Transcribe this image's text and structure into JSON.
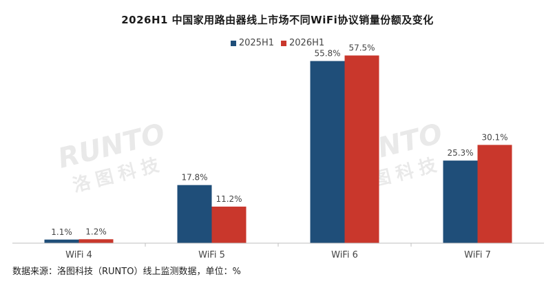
{
  "chart_data": {
    "type": "bar",
    "title": "2026H1 中国家用路由器线上市场不同WiFi协议销量份额及变化",
    "categories": [
      "WiFi 4",
      "WiFi 5",
      "WiFi 6",
      "WiFi 7"
    ],
    "series": [
      {
        "name": "2025H1",
        "values": [
          1.1,
          17.8,
          55.8,
          25.3
        ],
        "labels": [
          "1.1%",
          "17.8%",
          "55.8%",
          "25.3%"
        ],
        "color": "#1f4e79"
      },
      {
        "name": "2026H1",
        "values": [
          1.2,
          11.2,
          57.5,
          30.1
        ],
        "labels": [
          "1.2%",
          "11.2%",
          "57.5%",
          "30.1%"
        ],
        "color": "#c9372c"
      }
    ],
    "ylim": [
      0,
      65
    ],
    "grid": false,
    "legend_position": "top-center",
    "source_note": "数据来源：洛图科技（RUNTO）线上监测数据，单位：%",
    "watermark": {
      "brand": "RUNTO",
      "cn": "洛图科技"
    }
  }
}
